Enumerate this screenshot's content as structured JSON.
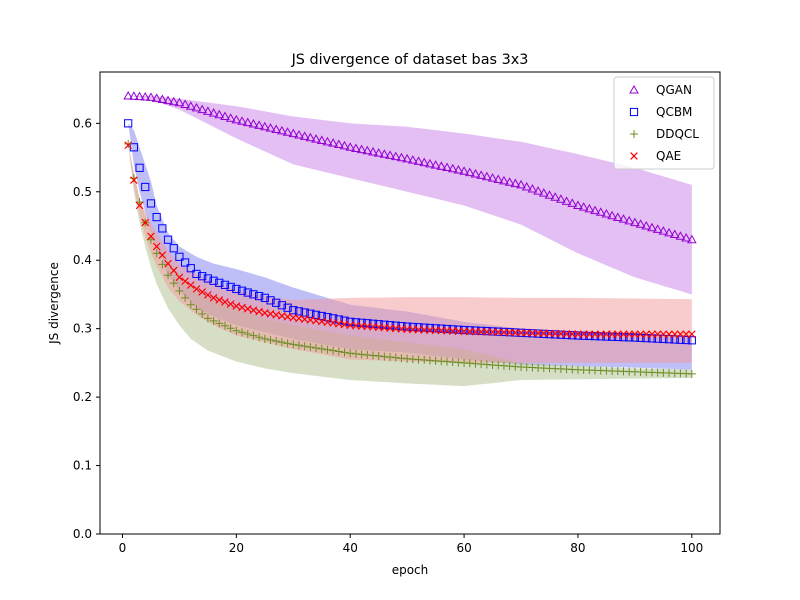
{
  "chart_data": {
    "type": "scatter",
    "title": "JS divergence of dataset bas 3x3",
    "xlabel": "epoch",
    "ylabel": "JS divergence",
    "xlim": [
      -3.95,
      104.95
    ],
    "ylim": [
      0,
      0.675
    ],
    "xticks": [
      0,
      20,
      40,
      60,
      80,
      100
    ],
    "yticks": [
      0.0,
      0.1,
      0.2,
      0.3,
      0.4,
      0.5,
      0.6
    ],
    "xtick_labels": [
      "0",
      "20",
      "40",
      "60",
      "80",
      "100"
    ],
    "ytick_labels": [
      "0.0",
      "0.1",
      "0.2",
      "0.3",
      "0.4",
      "0.5",
      "0.6"
    ],
    "grid": false,
    "legend_position": "top-right",
    "epochs": {
      "start": 1,
      "end": 100
    },
    "series": [
      {
        "name": "QGAN",
        "marker": "triangle",
        "color": "#9400d3",
        "band_color": "#c77fe8",
        "knots_x": [
          1,
          5,
          10,
          20,
          30,
          40,
          50,
          60,
          70,
          80,
          90,
          100
        ],
        "mean": [
          0.64,
          0.638,
          0.63,
          0.605,
          0.585,
          0.565,
          0.548,
          0.53,
          0.51,
          0.48,
          0.455,
          0.43
        ],
        "upper": [
          0.64,
          0.64,
          0.636,
          0.625,
          0.61,
          0.6,
          0.595,
          0.585,
          0.573,
          0.555,
          0.535,
          0.51
        ],
        "lower": [
          0.64,
          0.635,
          0.62,
          0.578,
          0.54,
          0.52,
          0.5,
          0.48,
          0.452,
          0.41,
          0.375,
          0.35
        ]
      },
      {
        "name": "QCBM",
        "marker": "square",
        "color": "#0000ff",
        "band_color": "#7f7ff2",
        "knots_x": [
          1,
          2,
          3,
          4,
          5,
          6,
          8,
          10,
          13,
          16,
          20,
          25,
          30,
          40,
          50,
          60,
          70,
          80,
          90,
          100
        ],
        "mean": [
          0.6,
          0.565,
          0.535,
          0.507,
          0.483,
          0.463,
          0.43,
          0.405,
          0.38,
          0.37,
          0.358,
          0.345,
          0.327,
          0.31,
          0.303,
          0.298,
          0.294,
          0.29,
          0.287,
          0.283
        ],
        "upper": [
          0.6,
          0.59,
          0.565,
          0.54,
          0.515,
          0.48,
          0.44,
          0.42,
          0.405,
          0.395,
          0.387,
          0.375,
          0.36,
          0.335,
          0.325,
          0.31,
          0.3,
          0.295,
          0.292,
          0.288
        ],
        "lower": [
          0.6,
          0.54,
          0.5,
          0.47,
          0.44,
          0.415,
          0.38,
          0.355,
          0.33,
          0.318,
          0.305,
          0.295,
          0.285,
          0.27,
          0.265,
          0.255,
          0.247,
          0.245,
          0.243,
          0.24
        ]
      },
      {
        "name": "DDQCL",
        "marker": "plus",
        "color": "#6b8e23",
        "band_color": "#aec08e",
        "knots_x": [
          1,
          2,
          3,
          4,
          5,
          6,
          8,
          10,
          12,
          15,
          20,
          25,
          30,
          40,
          50,
          60,
          70,
          80,
          90,
          100
        ],
        "mean": [
          0.57,
          0.52,
          0.485,
          0.455,
          0.43,
          0.41,
          0.378,
          0.355,
          0.335,
          0.315,
          0.297,
          0.285,
          0.277,
          0.264,
          0.256,
          0.25,
          0.244,
          0.24,
          0.237,
          0.234
        ],
        "upper": [
          0.57,
          0.525,
          0.49,
          0.465,
          0.445,
          0.425,
          0.4,
          0.38,
          0.362,
          0.345,
          0.33,
          0.315,
          0.305,
          0.29,
          0.28,
          0.27,
          0.25,
          0.245,
          0.242,
          0.24
        ],
        "lower": [
          0.57,
          0.5,
          0.455,
          0.42,
          0.39,
          0.365,
          0.33,
          0.305,
          0.285,
          0.268,
          0.252,
          0.242,
          0.235,
          0.225,
          0.22,
          0.216,
          0.225,
          0.226,
          0.227,
          0.228
        ]
      },
      {
        "name": "QAE",
        "marker": "x",
        "color": "#ff0000",
        "band_color": "#f29a9a",
        "knots_x": [
          1,
          2,
          3,
          4,
          5,
          6,
          8,
          10,
          13,
          16,
          20,
          25,
          30,
          40,
          50,
          60,
          70,
          80,
          90,
          100
        ],
        "mean": [
          0.568,
          0.517,
          0.48,
          0.455,
          0.435,
          0.42,
          0.395,
          0.375,
          0.358,
          0.345,
          0.333,
          0.323,
          0.316,
          0.305,
          0.299,
          0.296,
          0.294,
          0.292,
          0.292,
          0.292
        ],
        "upper": [
          0.568,
          0.53,
          0.49,
          0.47,
          0.455,
          0.44,
          0.415,
          0.395,
          0.38,
          0.367,
          0.357,
          0.347,
          0.342,
          0.345,
          0.346,
          0.346,
          0.345,
          0.345,
          0.344,
          0.343
        ],
        "lower": [
          0.568,
          0.51,
          0.465,
          0.435,
          0.41,
          0.392,
          0.36,
          0.34,
          0.32,
          0.305,
          0.29,
          0.28,
          0.27,
          0.255,
          0.252,
          0.25,
          0.25,
          0.25,
          0.25,
          0.25
        ]
      }
    ]
  }
}
